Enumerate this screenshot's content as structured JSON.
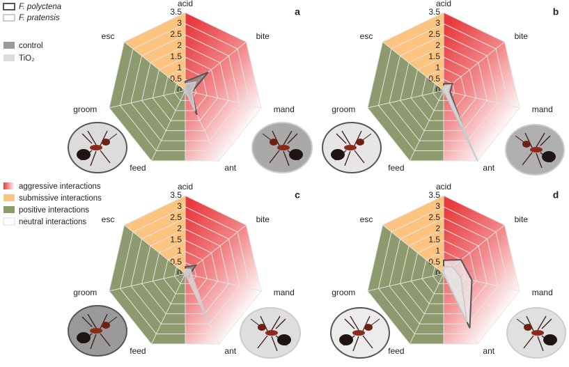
{
  "legend": {
    "species": [
      {
        "label": "F. polyctena",
        "stroke": "#555555"
      },
      {
        "label": "F. pratensis",
        "stroke": "#cccccc"
      }
    ],
    "treatments": [
      {
        "label": "control",
        "fill": "#9a9a9a"
      },
      {
        "label": "TiO₂",
        "fill": "#dddddd"
      }
    ],
    "interactions": [
      {
        "label": "aggressive interactions",
        "color": "#e8393c"
      },
      {
        "label": "submissive interactions",
        "color": "#fcc47f"
      },
      {
        "label": "positive interactions",
        "color": "#8c9a6d"
      },
      {
        "label": "neutral interactions",
        "color": "#ffffff"
      }
    ]
  },
  "chart_data": [
    {
      "type": "radar",
      "title": "a",
      "categories": [
        "acid",
        "bite",
        "mand",
        "ant",
        "feed",
        "groom",
        "esc"
      ],
      "rlim": [
        0,
        3.5
      ],
      "rticks": [
        0,
        0.5,
        1,
        1.5,
        2,
        2.5,
        3,
        3.5
      ],
      "series": [
        {
          "stroke": "#555555",
          "fill": "#888888",
          "values": [
            0.4,
            1.3,
            0.3,
            1.2,
            0,
            0,
            0
          ]
        },
        {
          "stroke": "#cccccc",
          "fill": "#cccccc",
          "values": [
            0.3,
            0.6,
            0.3,
            1.0,
            0,
            0,
            0
          ]
        }
      ]
    },
    {
      "type": "radar",
      "title": "b",
      "categories": [
        "acid",
        "bite",
        "mand",
        "ant",
        "feed",
        "groom",
        "esc"
      ],
      "rlim": [
        0,
        3.5
      ],
      "rticks": [
        0,
        0.5,
        1,
        1.5,
        2,
        2.5,
        3,
        3.5
      ],
      "series": [
        {
          "stroke": "#555555",
          "fill": "#cccccc",
          "values": [
            0.3,
            0.5,
            0.3,
            2.5,
            0,
            0,
            0
          ]
        },
        {
          "stroke": "#cccccc",
          "fill": "#dddddd",
          "values": [
            0.2,
            0.4,
            0.2,
            3.5,
            0,
            0,
            0
          ]
        }
      ]
    },
    {
      "type": "radar",
      "title": "c",
      "categories": [
        "acid",
        "bite",
        "mand",
        "ant",
        "feed",
        "groom",
        "esc"
      ],
      "rlim": [
        0,
        3.5
      ],
      "rticks": [
        0,
        0.5,
        1,
        1.5,
        2,
        2.5,
        3,
        3.5
      ],
      "series": [
        {
          "stroke": "#555555",
          "fill": "#888888",
          "values": [
            0.3,
            0.6,
            0.2,
            0.3,
            0,
            0,
            0
          ]
        },
        {
          "stroke": "#cccccc",
          "fill": "#dddddd",
          "values": [
            0.2,
            0.3,
            0.3,
            2.4,
            0,
            0,
            0
          ]
        }
      ]
    },
    {
      "type": "radar",
      "title": "d",
      "categories": [
        "acid",
        "bite",
        "mand",
        "ant",
        "feed",
        "groom",
        "esc"
      ],
      "rlim": [
        0,
        3.5
      ],
      "rticks": [
        0,
        0.5,
        1,
        1.5,
        2,
        2.5,
        3,
        3.5
      ],
      "series": [
        {
          "stroke": "#555555",
          "fill": "#eeeeee",
          "values": [
            0.6,
            1.0,
            1.3,
            2.7,
            0,
            0,
            0
          ]
        },
        {
          "stroke": "#cccccc",
          "fill": "#e4e4e4",
          "values": [
            0.3,
            0.5,
            0.8,
            2.4,
            0,
            0,
            0
          ]
        }
      ]
    }
  ]
}
